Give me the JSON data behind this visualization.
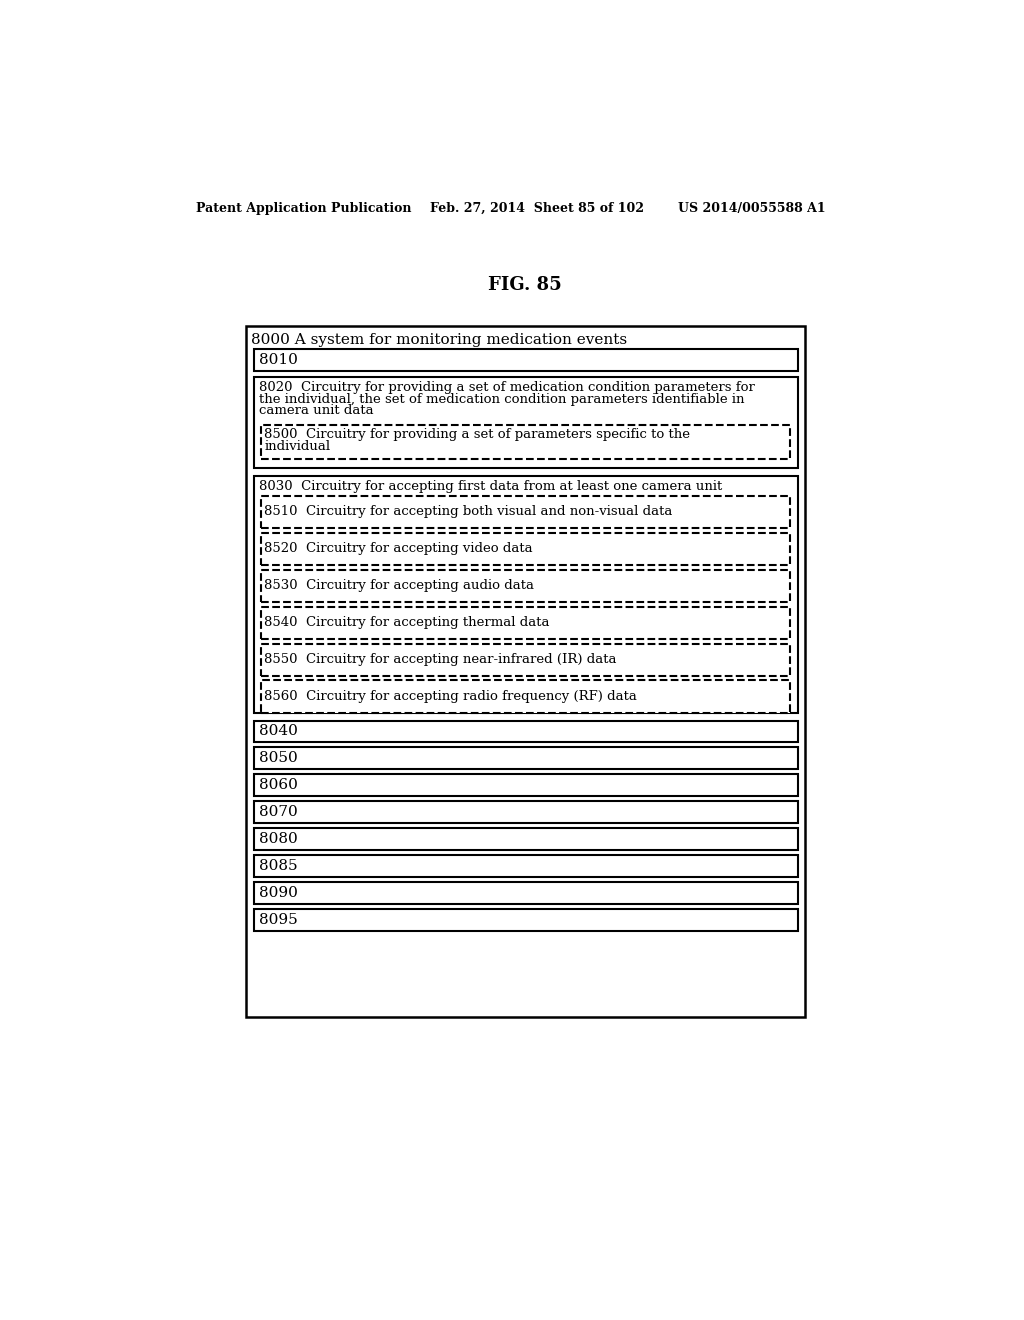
{
  "fig_title": "FIG. 85",
  "header_left": "Patent Application Publication",
  "header_mid": "Feb. 27, 2014  Sheet 85 of 102",
  "header_right": "US 2014/0055588 A1",
  "background_color": "#ffffff",
  "outer_box_label": "8000 A system for monitoring medication events",
  "box_8010": "8010",
  "box_8020_line1": "8020  Circuitry for providing a set of medication condition parameters for",
  "box_8020_line2": "the individual, the set of medication condition parameters identifiable in",
  "box_8020_line3": "camera unit data",
  "box_8500_line1": "8500  Circuitry for providing a set of parameters specific to the",
  "box_8500_line2": "individual",
  "box_8030_label": "8030  Circuitry for accepting first data from at least one camera unit",
  "box_8510_label": "8510  Circuitry for accepting both visual and non-visual data",
  "box_8520_label": "8520  Circuitry for accepting video data",
  "box_8530_label": "8530  Circuitry for accepting audio data",
  "box_8540_label": "8540  Circuitry for accepting thermal data",
  "box_8550_label": "8550  Circuitry for accepting near-infrared (IR) data",
  "box_8560_label": "8560  Circuitry for accepting radio frequency (RF) data",
  "simple_boxes": [
    "8040",
    "8050",
    "8060",
    "8070",
    "8080",
    "8085",
    "8090",
    "8095"
  ]
}
